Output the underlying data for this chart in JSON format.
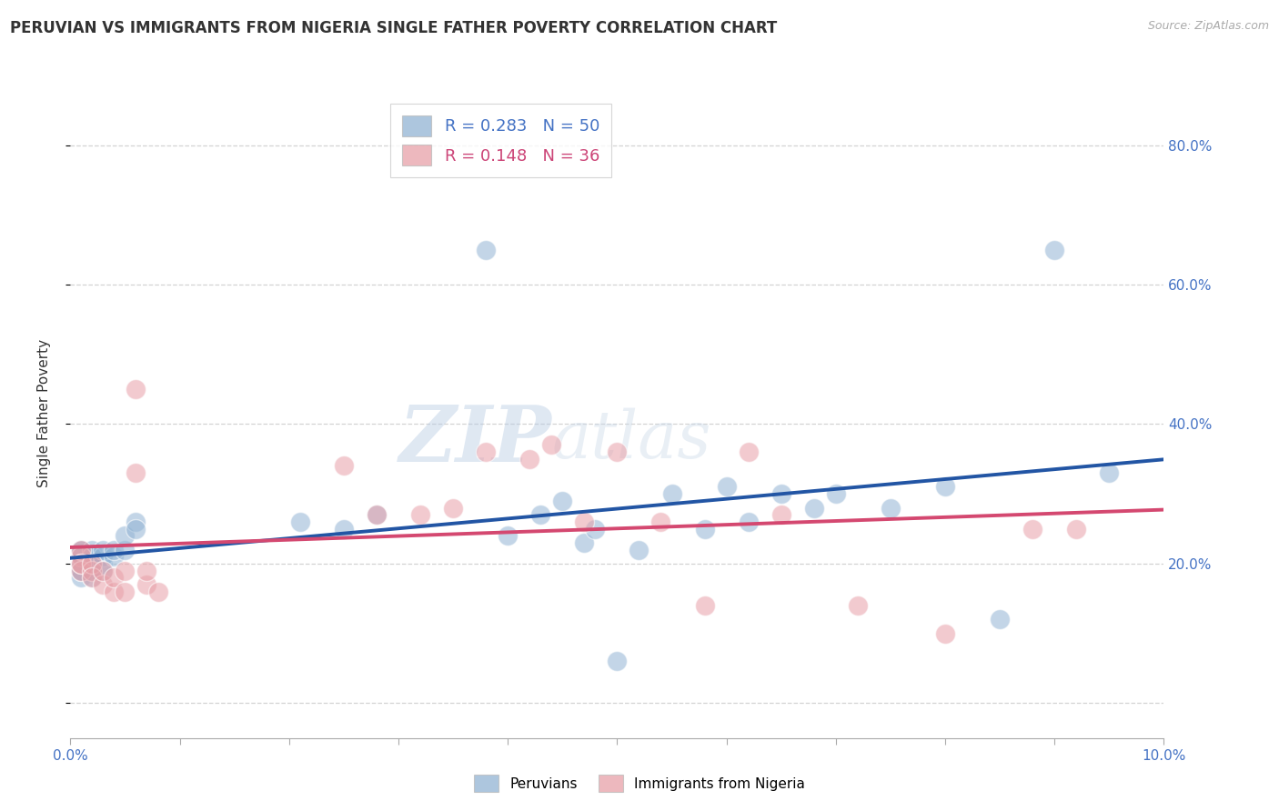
{
  "title": "PERUVIAN VS IMMIGRANTS FROM NIGERIA SINGLE FATHER POVERTY CORRELATION CHART",
  "source": "Source: ZipAtlas.com",
  "ylabel": "Single Father Poverty",
  "xlim": [
    0.0,
    0.1
  ],
  "ylim": [
    -0.05,
    0.88
  ],
  "xticks": [
    0.0,
    0.01,
    0.02,
    0.03,
    0.04,
    0.05,
    0.06,
    0.07,
    0.08,
    0.09,
    0.1
  ],
  "xticklabels_show": [
    "0.0%",
    "",
    "",
    "",
    "",
    "",
    "",
    "",
    "",
    "",
    "10.0%"
  ],
  "yticks": [
    0.0,
    0.2,
    0.4,
    0.6,
    0.8
  ],
  "yticklabels": [
    "",
    "20.0%",
    "40.0%",
    "60.0%",
    "80.0%"
  ],
  "blue_color": "#92b4d4",
  "pink_color": "#e8a0a8",
  "blue_line_color": "#2255a4",
  "pink_line_color": "#d44870",
  "legend_blue_R": "0.283",
  "legend_blue_N": "50",
  "legend_pink_R": "0.148",
  "legend_pink_N": "36",
  "watermark_zip": "ZIP",
  "watermark_atlas": "atlas",
  "blue_points_x": [
    0.001,
    0.001,
    0.001,
    0.001,
    0.001,
    0.001,
    0.001,
    0.001,
    0.001,
    0.001,
    0.002,
    0.002,
    0.002,
    0.002,
    0.002,
    0.002,
    0.002,
    0.003,
    0.003,
    0.003,
    0.003,
    0.004,
    0.004,
    0.005,
    0.005,
    0.006,
    0.006,
    0.021,
    0.025,
    0.028,
    0.038,
    0.04,
    0.043,
    0.045,
    0.047,
    0.048,
    0.05,
    0.052,
    0.055,
    0.058,
    0.06,
    0.062,
    0.065,
    0.068,
    0.07,
    0.075,
    0.08,
    0.085,
    0.09,
    0.095
  ],
  "blue_points_y": [
    0.2,
    0.21,
    0.19,
    0.22,
    0.18,
    0.2,
    0.21,
    0.19,
    0.22,
    0.2,
    0.19,
    0.2,
    0.21,
    0.22,
    0.18,
    0.2,
    0.21,
    0.2,
    0.21,
    0.22,
    0.19,
    0.21,
    0.22,
    0.22,
    0.24,
    0.26,
    0.25,
    0.26,
    0.25,
    0.27,
    0.65,
    0.24,
    0.27,
    0.29,
    0.23,
    0.25,
    0.06,
    0.22,
    0.3,
    0.25,
    0.31,
    0.26,
    0.3,
    0.28,
    0.3,
    0.28,
    0.31,
    0.12,
    0.65,
    0.33
  ],
  "pink_points_x": [
    0.001,
    0.001,
    0.001,
    0.001,
    0.001,
    0.002,
    0.002,
    0.002,
    0.003,
    0.003,
    0.004,
    0.004,
    0.005,
    0.005,
    0.006,
    0.006,
    0.007,
    0.007,
    0.008,
    0.025,
    0.028,
    0.032,
    0.035,
    0.038,
    0.042,
    0.044,
    0.047,
    0.05,
    0.054,
    0.058,
    0.062,
    0.065,
    0.072,
    0.08,
    0.088,
    0.092
  ],
  "pink_points_y": [
    0.21,
    0.2,
    0.19,
    0.22,
    0.2,
    0.19,
    0.2,
    0.18,
    0.17,
    0.19,
    0.16,
    0.18,
    0.16,
    0.19,
    0.45,
    0.33,
    0.17,
    0.19,
    0.16,
    0.34,
    0.27,
    0.27,
    0.28,
    0.36,
    0.35,
    0.37,
    0.26,
    0.36,
    0.26,
    0.14,
    0.36,
    0.27,
    0.14,
    0.1,
    0.25,
    0.25
  ]
}
